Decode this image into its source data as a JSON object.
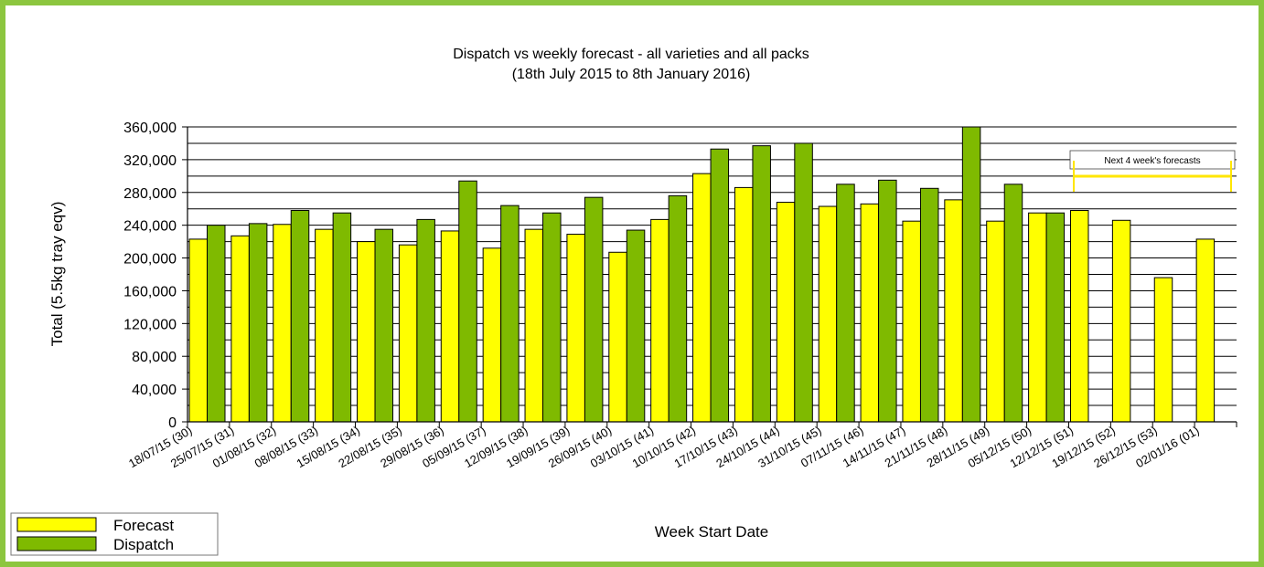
{
  "colors": {
    "frame": "#8cc63f",
    "forecast": "#ffff00",
    "dispatch": "#7fba00",
    "bracket": "#ffe600"
  },
  "chart_data": {
    "type": "bar",
    "title": "Dispatch vs weekly forecast - all varieties and all packs",
    "subtitle": "(18th July 2015 to 8th January 2016)",
    "xlabel": "Week Start Date",
    "ylabel": "Total (5.5kg tray eqv)",
    "ylim": [
      0,
      360000
    ],
    "yticks": [
      "0",
      "40,000",
      "80,000",
      "120,000",
      "160,000",
      "200,000",
      "240,000",
      "280,000",
      "320,000",
      "360,000"
    ],
    "grid": true,
    "legend_position": "bottom-left",
    "annotation": "Next 4 week's forecasts",
    "categories": [
      "18/07/15 (30)",
      "25/07/15 (31)",
      "01/08/15 (32)",
      "08/08/15 (33)",
      "15/08/15 (34)",
      "22/08/15 (35)",
      "29/08/15 (36)",
      "05/09/15 (37)",
      "12/09/15 (38)",
      "19/09/15 (39)",
      "26/09/15 (40)",
      "03/10/15 (41)",
      "10/10/15 (42)",
      "17/10/15 (43)",
      "24/10/15 (44)",
      "31/10/15 (45)",
      "07/11/15 (46)",
      "14/11/15 (47)",
      "21/11/15 (48)",
      "28/11/15 (49)",
      "05/12/15 (50)",
      "12/12/15 (51)",
      "19/12/15 (52)",
      "26/12/15 (53)",
      "02/01/16 (01)"
    ],
    "series": [
      {
        "name": "Forecast",
        "values": [
          223000,
          227000,
          241000,
          235000,
          220000,
          216000,
          233000,
          212000,
          235000,
          229000,
          207000,
          247000,
          303000,
          286000,
          268000,
          263000,
          266000,
          245000,
          271000,
          245000,
          255000,
          258000,
          246000,
          176000,
          223000
        ]
      },
      {
        "name": "Dispatch",
        "values": [
          240000,
          242000,
          258000,
          255000,
          235000,
          247000,
          294000,
          264000,
          255000,
          274000,
          234000,
          276000,
          333000,
          337000,
          340000,
          290000,
          295000,
          285000,
          360000,
          290000,
          255000,
          null,
          null,
          null,
          null
        ]
      }
    ]
  }
}
